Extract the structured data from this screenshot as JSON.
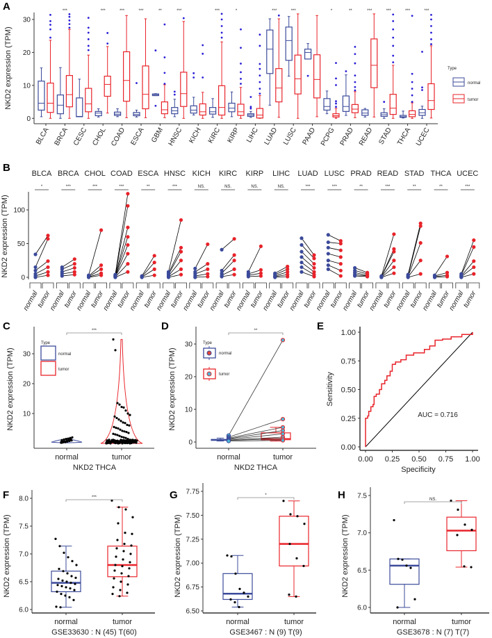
{
  "colors": {
    "normal": "#3b4a9a",
    "tumor": "#e8232a",
    "outlier": "#2a1fd6",
    "point": "#000000",
    "fill_tumor_point": "#4fb7d6"
  },
  "panels": [
    "A",
    "B",
    "C",
    "D",
    "E",
    "F",
    "G",
    "H"
  ],
  "ylabel": "NKD2 expression (TPM)",
  "chart_data": [
    {
      "type": "box",
      "panel": "A",
      "ylabel": "NKD2 expression (TPM)",
      "ylim": [
        -1,
        32
      ],
      "yticks": [
        0,
        10,
        20,
        30
      ],
      "legend": {
        "title": "Type",
        "entries": [
          "normal",
          "tumor"
        ],
        "placement": "right"
      },
      "categories": [
        "BLCA",
        "BRCA",
        "CESC",
        "CHOL",
        "COAD",
        "ESCA",
        "GBM",
        "HNSC",
        "KICH",
        "KIRC",
        "KIRP",
        "LIHC",
        "LUAD",
        "LUSC",
        "PAAD",
        "PCPG",
        "PRAD",
        "READ",
        "STAD",
        "THCA",
        "UCEC"
      ],
      "significance": [
        "",
        "***",
        "",
        "***",
        "***",
        "***",
        "**",
        "***",
        "",
        "***",
        "*",
        "",
        "***",
        "***",
        "",
        "*",
        "**",
        "***",
        "***",
        "***",
        "***"
      ],
      "normal": [
        [
          0.5,
          2.5,
          4.6,
          11.3,
          15.3
        ],
        [
          0,
          1.4,
          4,
          7.1,
          15.4
        ],
        [
          0.5,
          0.5,
          0.6,
          6.2,
          11.9
        ],
        [
          0.4,
          0.8,
          1.6,
          2.1,
          2.9
        ],
        [
          0.5,
          0.9,
          1.3,
          1.9,
          2.9
        ],
        [
          0.4,
          0.8,
          1.2,
          1.8,
          2.5
        ],
        [
          6.9,
          6.9,
          7.2,
          7.4,
          7.5
        ],
        [
          0.5,
          1.4,
          2.3,
          3.3,
          5.8
        ],
        [
          1,
          1.6,
          2.5,
          3.8,
          6.4
        ],
        [
          0.3,
          1.3,
          2,
          3.3,
          6
        ],
        [
          0.5,
          2,
          3.1,
          4.6,
          8
        ],
        [
          0.3,
          0.6,
          1,
          1.4,
          2.1
        ],
        [
          4,
          13.6,
          21,
          26.8,
          30.2
        ],
        [
          12.8,
          17.6,
          23.6,
          27.7,
          30.9
        ],
        [
          18,
          18,
          20,
          21,
          22.7
        ],
        [
          1.4,
          2.5,
          3.6,
          6,
          8.3
        ],
        [
          0.9,
          2.1,
          3.6,
          6.8,
          13.2
        ],
        [
          0.4,
          0.9,
          1.6,
          2.6,
          3
        ],
        [
          0,
          0.6,
          1.1,
          1.7,
          2.9
        ],
        [
          0.1,
          0.3,
          0.5,
          0.9,
          2.2
        ],
        [
          0,
          0.9,
          1.7,
          2.7,
          3.7
        ]
      ],
      "tumor": [
        [
          0,
          1.8,
          4.6,
          10.7,
          23.7
        ],
        [
          0,
          3.5,
          7.2,
          13,
          27
        ],
        [
          0,
          2,
          4.4,
          9.1,
          19.2
        ],
        [
          1.6,
          6.7,
          10.3,
          12.8,
          21.8
        ],
        [
          0.2,
          5.2,
          11.5,
          20.2,
          31.2
        ],
        [
          0.2,
          2.9,
          7.3,
          15.9,
          30.2
        ],
        [
          0.2,
          1.4,
          2.6,
          5,
          10.2
        ],
        [
          0,
          3.6,
          7.5,
          14,
          29.4
        ],
        [
          0,
          1,
          2,
          4.4,
          7.9
        ],
        [
          0,
          1,
          3.3,
          9.9,
          23.2
        ],
        [
          0,
          0.9,
          2,
          4.3,
          9.4
        ],
        [
          0,
          0.1,
          1,
          3,
          6.9
        ],
        [
          0.3,
          5,
          9.2,
          15.1,
          30.2
        ],
        [
          0,
          7.4,
          12,
          19.2,
          31.7
        ],
        [
          0.5,
          6.2,
          11.8,
          19.3,
          31.2
        ],
        [
          0,
          0.4,
          0.8,
          1.4,
          3
        ],
        [
          0.2,
          1.7,
          2.8,
          4.2,
          8.1
        ],
        [
          0.4,
          9.3,
          16.1,
          24.1,
          31.7
        ],
        [
          0,
          1.2,
          3.1,
          7.3,
          16.1
        ],
        [
          0,
          0.5,
          1.2,
          2.3,
          4.7
        ],
        [
          0.1,
          2.7,
          5.4,
          10.5,
          22
        ]
      ],
      "normal_outliers": [
        [],
        [],
        [],
        [],
        [],
        [
          10.7
        ],
        [
          3.8,
          20.6
        ],
        [
          7.2,
          8.1
        ],
        [
          12.4,
          13.7
        ],
        [],
        [],
        [
          3,
          3.5,
          6.5
        ],
        [],
        [],
        [
          12.9
        ],
        [],
        [
          14.3
        ],
        [],
        [
          5
        ],
        [],
        [
          8.6,
          9.4,
          20.2
        ]
      ],
      "tumor_outliers": [
        [
          24.5,
          27,
          28.4,
          29.5,
          31.4
        ],
        [
          27.5,
          28.6,
          29.7,
          30.8,
          31.6
        ],
        [
          20.7,
          22,
          24,
          26,
          27.5,
          30.5
        ],
        [
          22.7,
          25.9
        ],
        [],
        [],
        [
          10.5,
          13.8,
          18.5,
          28.5
        ],
        [
          30.4
        ],
        [
          12.4,
          19.6,
          22.2
        ],
        [
          24.5,
          26,
          28,
          30,
          31.7
        ],
        [
          10.5,
          12,
          14,
          16.6,
          21.4,
          27
        ],
        [
          7.5,
          9,
          11,
          13,
          15,
          16.5,
          22,
          25.4
        ],
        [
          31.2
        ],
        [],
        [],
        [
          3.5,
          4.5,
          5.2,
          10.1,
          12.1,
          16.8
        ],
        [
          8.5,
          9.5,
          11,
          13,
          16.7,
          19.5,
          21.7
        ],
        [],
        [
          17,
          19,
          22,
          24.5,
          27,
          29.5,
          31.5
        ],
        [
          5,
          7,
          9,
          11,
          13.5,
          31.1
        ],
        [
          22.5,
          24,
          26,
          28,
          30,
          31.4
        ]
      ]
    },
    {
      "type": "paired",
      "panel": "B",
      "ylabel": "NKD2 expression (TPM)",
      "ylim": [
        0,
        125
      ],
      "yticks": [
        0,
        50,
        100
      ],
      "group_labels": [
        "normal",
        "tumor"
      ],
      "categories": [
        "BLCA",
        "BRCA",
        "CHOL",
        "COAD",
        "ESCA",
        "HNSC",
        "KICH",
        "KIRC",
        "KIRP",
        "LIHC",
        "LUAD",
        "LUSC",
        "PRAD",
        "READ",
        "STAD",
        "THCA",
        "UCEC"
      ],
      "significance": [
        "*",
        "***",
        "***",
        "***",
        "**",
        "***",
        "NS.",
        "NS.",
        "NS.",
        "NS.",
        "***",
        "***",
        "**",
        "***",
        "**",
        "**",
        "***"
      ],
      "normal": [
        [
          34,
          15,
          10,
          5,
          2,
          0
        ],
        [
          15,
          12,
          8,
          5,
          2
        ],
        [
          3,
          2,
          1,
          0.5,
          0
        ],
        [
          4,
          3,
          2,
          2,
          1,
          1,
          0.5,
          0
        ],
        [
          2,
          1,
          0.5,
          0
        ],
        [
          8,
          6,
          4,
          2,
          1,
          0
        ],
        [
          13,
          8,
          5,
          2,
          0
        ],
        [
          41,
          10,
          6,
          3,
          1
        ],
        [
          8,
          5,
          3,
          1
        ],
        [
          6,
          4,
          2,
          1,
          0
        ],
        [
          58,
          48,
          38,
          30,
          22,
          15,
          8
        ],
        [
          63,
          52,
          44,
          35,
          25,
          18,
          12
        ],
        [
          14,
          10,
          7,
          4,
          2
        ],
        [
          2,
          1,
          1,
          0.5,
          0,
          0
        ],
        [
          4,
          2,
          1,
          0.5,
          0
        ],
        [
          3,
          2,
          1,
          0
        ],
        [
          5,
          3,
          2,
          1,
          0
        ]
      ],
      "tumor": [
        [
          62,
          57,
          24,
          15,
          8,
          3
        ],
        [
          27,
          20,
          14,
          8,
          4
        ],
        [
          70,
          18,
          12,
          6,
          3
        ],
        [
          124,
          106,
          74,
          60,
          48,
          35,
          20,
          8
        ],
        [
          32,
          22,
          12,
          3
        ],
        [
          85,
          44,
          38,
          25,
          12,
          4
        ],
        [
          49,
          20,
          12,
          5,
          1
        ],
        [
          57,
          33,
          25,
          12,
          4
        ],
        [
          46,
          11,
          6,
          2
        ],
        [
          16,
          12,
          8,
          4,
          1
        ],
        [
          33,
          28,
          20,
          14,
          8,
          4,
          1
        ],
        [
          54,
          50,
          40,
          30,
          20,
          10,
          2
        ],
        [
          7,
          5,
          3,
          2,
          1
        ],
        [
          64,
          42,
          38,
          25,
          15,
          6
        ],
        [
          80,
          76,
          51,
          25,
          5
        ],
        [
          31,
          7,
          3,
          1
        ],
        [
          55,
          45,
          24,
          15,
          5
        ]
      ]
    },
    {
      "type": "violin",
      "panel": "C",
      "ylabel": "NKD2 expression (TPM)",
      "xlabel": "NKD2 THCA",
      "categories": [
        "normal",
        "tumor"
      ],
      "significance": "***",
      "ylim": [
        0,
        36
      ],
      "yticks": [
        10,
        20,
        30
      ],
      "legend": {
        "title": "Type",
        "entries": [
          "normal",
          "tumor"
        ],
        "placement": "top-left"
      },
      "normal_points": [
        0.2,
        0.4,
        0.5,
        0.6,
        0.8,
        1,
        1.1,
        1.3,
        1.5,
        1.6,
        1.8,
        2,
        0.3,
        0.7,
        0.9,
        1.2,
        1.4,
        0.5,
        0.6,
        0.4
      ],
      "tumor_points": [
        34.8,
        31.2,
        13.5,
        13,
        12.2,
        12,
        11,
        10,
        9.5,
        9,
        8.5,
        8,
        7.5,
        7,
        6.8,
        6.2,
        6,
        5.5,
        5.2,
        5,
        4.6,
        4.2,
        4,
        3.8,
        3.5,
        3.2,
        3,
        2.8,
        2.5,
        2.2,
        2,
        1.8,
        1.5,
        1.2,
        1,
        0.8,
        0.6,
        0.4,
        0.2,
        0.1
      ]
    },
    {
      "type": "paired-box",
      "panel": "D",
      "ylabel": "NKD2 expression (TPM)",
      "xlabel": "NKD2 THCA",
      "categories": [
        "normal",
        "tumor"
      ],
      "significance": "**",
      "ylim": [
        0,
        33
      ],
      "yticks": [
        0,
        10,
        20,
        30
      ],
      "legend": {
        "title": "Type",
        "entries": [
          "normal",
          "tumor"
        ],
        "placement": "top-left"
      },
      "normal_box": [
        0.3,
        0.5,
        0.6,
        0.8,
        1.2
      ],
      "tumor_box": [
        0.3,
        0.7,
        1,
        2.8,
        4.5
      ],
      "normal_points": [
        2,
        1.5,
        1.2,
        1,
        0.8,
        0.6,
        0.5,
        0.3
      ],
      "tumor_points": [
        31.2,
        7,
        4.5,
        3.5,
        2.5,
        1.5,
        1,
        0.5
      ]
    },
    {
      "type": "line",
      "panel": "E",
      "xlabel": "Specificity",
      "ylabel": "Sensitivity",
      "xlim": [
        0,
        1
      ],
      "ylim": [
        0,
        1
      ],
      "xticks": [
        "0.00",
        "0.25",
        "0.50",
        "0.75",
        "1.00"
      ],
      "yticks": [
        "0.00",
        "0.25",
        "0.50",
        "0.75",
        "1.00"
      ],
      "annotation": "AUC = 0.716",
      "x": [
        0,
        0,
        0.02,
        0.03,
        0.05,
        0.07,
        0.08,
        0.1,
        0.13,
        0.15,
        0.18,
        0.2,
        0.23,
        0.25,
        0.28,
        0.33,
        0.38,
        0.45,
        0.55,
        0.6,
        0.65,
        0.72,
        0.8,
        0.9,
        1
      ],
      "y": [
        0,
        0.25,
        0.27,
        0.31,
        0.35,
        0.37,
        0.44,
        0.46,
        0.5,
        0.55,
        0.58,
        0.62,
        0.66,
        0.72,
        0.74,
        0.76,
        0.8,
        0.82,
        0.85,
        0.88,
        0.93,
        0.94,
        0.96,
        0.98,
        1
      ]
    },
    {
      "type": "box",
      "panel": "F",
      "ylabel": "NKD2 expression (TPM)",
      "xlabel": "GSE33630 : N (45) T(60)",
      "categories": [
        "normal",
        "tumor"
      ],
      "significance": "***",
      "ylim": [
        5.98,
        8.1
      ],
      "yticks": [
        "6.0",
        "6.5",
        "7.0",
        "7.5",
        "8.0"
      ],
      "normal_box": [
        6.04,
        6.32,
        6.48,
        6.69,
        7.14
      ],
      "tumor_box": [
        6.24,
        6.59,
        6.8,
        7.14,
        7.84
      ],
      "normal_points": [
        7.27,
        7.14,
        7.02,
        6.94,
        6.87,
        6.8,
        6.73,
        6.69,
        6.65,
        6.6,
        6.57,
        6.55,
        6.52,
        6.5,
        6.48,
        6.46,
        6.44,
        6.42,
        6.4,
        6.38,
        6.35,
        6.32,
        6.28,
        6.25,
        6.22,
        6.17,
        6.05,
        6.04
      ],
      "tumor_points": [
        7.96,
        7.84,
        7.8,
        7.66,
        7.55,
        7.38,
        7.36,
        7.25,
        7.18,
        7.15,
        7.1,
        7.05,
        7,
        6.95,
        6.9,
        6.85,
        6.8,
        6.78,
        6.74,
        6.7,
        6.65,
        6.6,
        6.56,
        6.5,
        6.45,
        6.4,
        6.35,
        6.3,
        6.28,
        6.24
      ]
    },
    {
      "type": "box",
      "panel": "G",
      "ylabel": "NKD2 expression (TPM)",
      "xlabel": "GSE3467 : N (9) T(9)",
      "categories": [
        "normal",
        "tumor"
      ],
      "significance": "*",
      "ylim": [
        6.5,
        7.78
      ],
      "yticks": [
        "6.50",
        "6.75",
        "7.00",
        "7.25",
        "7.50",
        "7.75"
      ],
      "normal_box": [
        6.54,
        6.62,
        6.68,
        6.89,
        7.08
      ],
      "tumor_box": [
        6.65,
        6.97,
        7.2,
        7.49,
        7.65
      ],
      "normal_points": [
        7.08,
        7.07,
        6.89,
        6.73,
        6.69,
        6.65,
        6.62,
        6.59,
        6.54
      ],
      "tumor_points": [
        7.65,
        7.51,
        7.49,
        7.41,
        7.2,
        7.05,
        6.97,
        6.67,
        6.65
      ]
    },
    {
      "type": "box",
      "panel": "H",
      "ylabel": "NKD2 expression (TPM)",
      "xlabel": "GSE3678 : N (7) T(7)",
      "categories": [
        "normal",
        "tumor"
      ],
      "significance": "NS.",
      "ylim": [
        5.98,
        7.55
      ],
      "yticks": [
        "6.0",
        "6.5",
        "7.0",
        "7.5"
      ],
      "normal_box": [
        6.0,
        6.31,
        6.56,
        6.65,
        6.65
      ],
      "tumor_box": [
        6.54,
        6.76,
        7.03,
        7.21,
        7.43
      ],
      "normal_points": [
        7.17,
        6.65,
        6.64,
        6.56,
        6.53,
        6.11,
        6.0
      ],
      "tumor_points": [
        7.43,
        7.31,
        7.11,
        7.04,
        6.97,
        6.55,
        6.54
      ]
    }
  ]
}
